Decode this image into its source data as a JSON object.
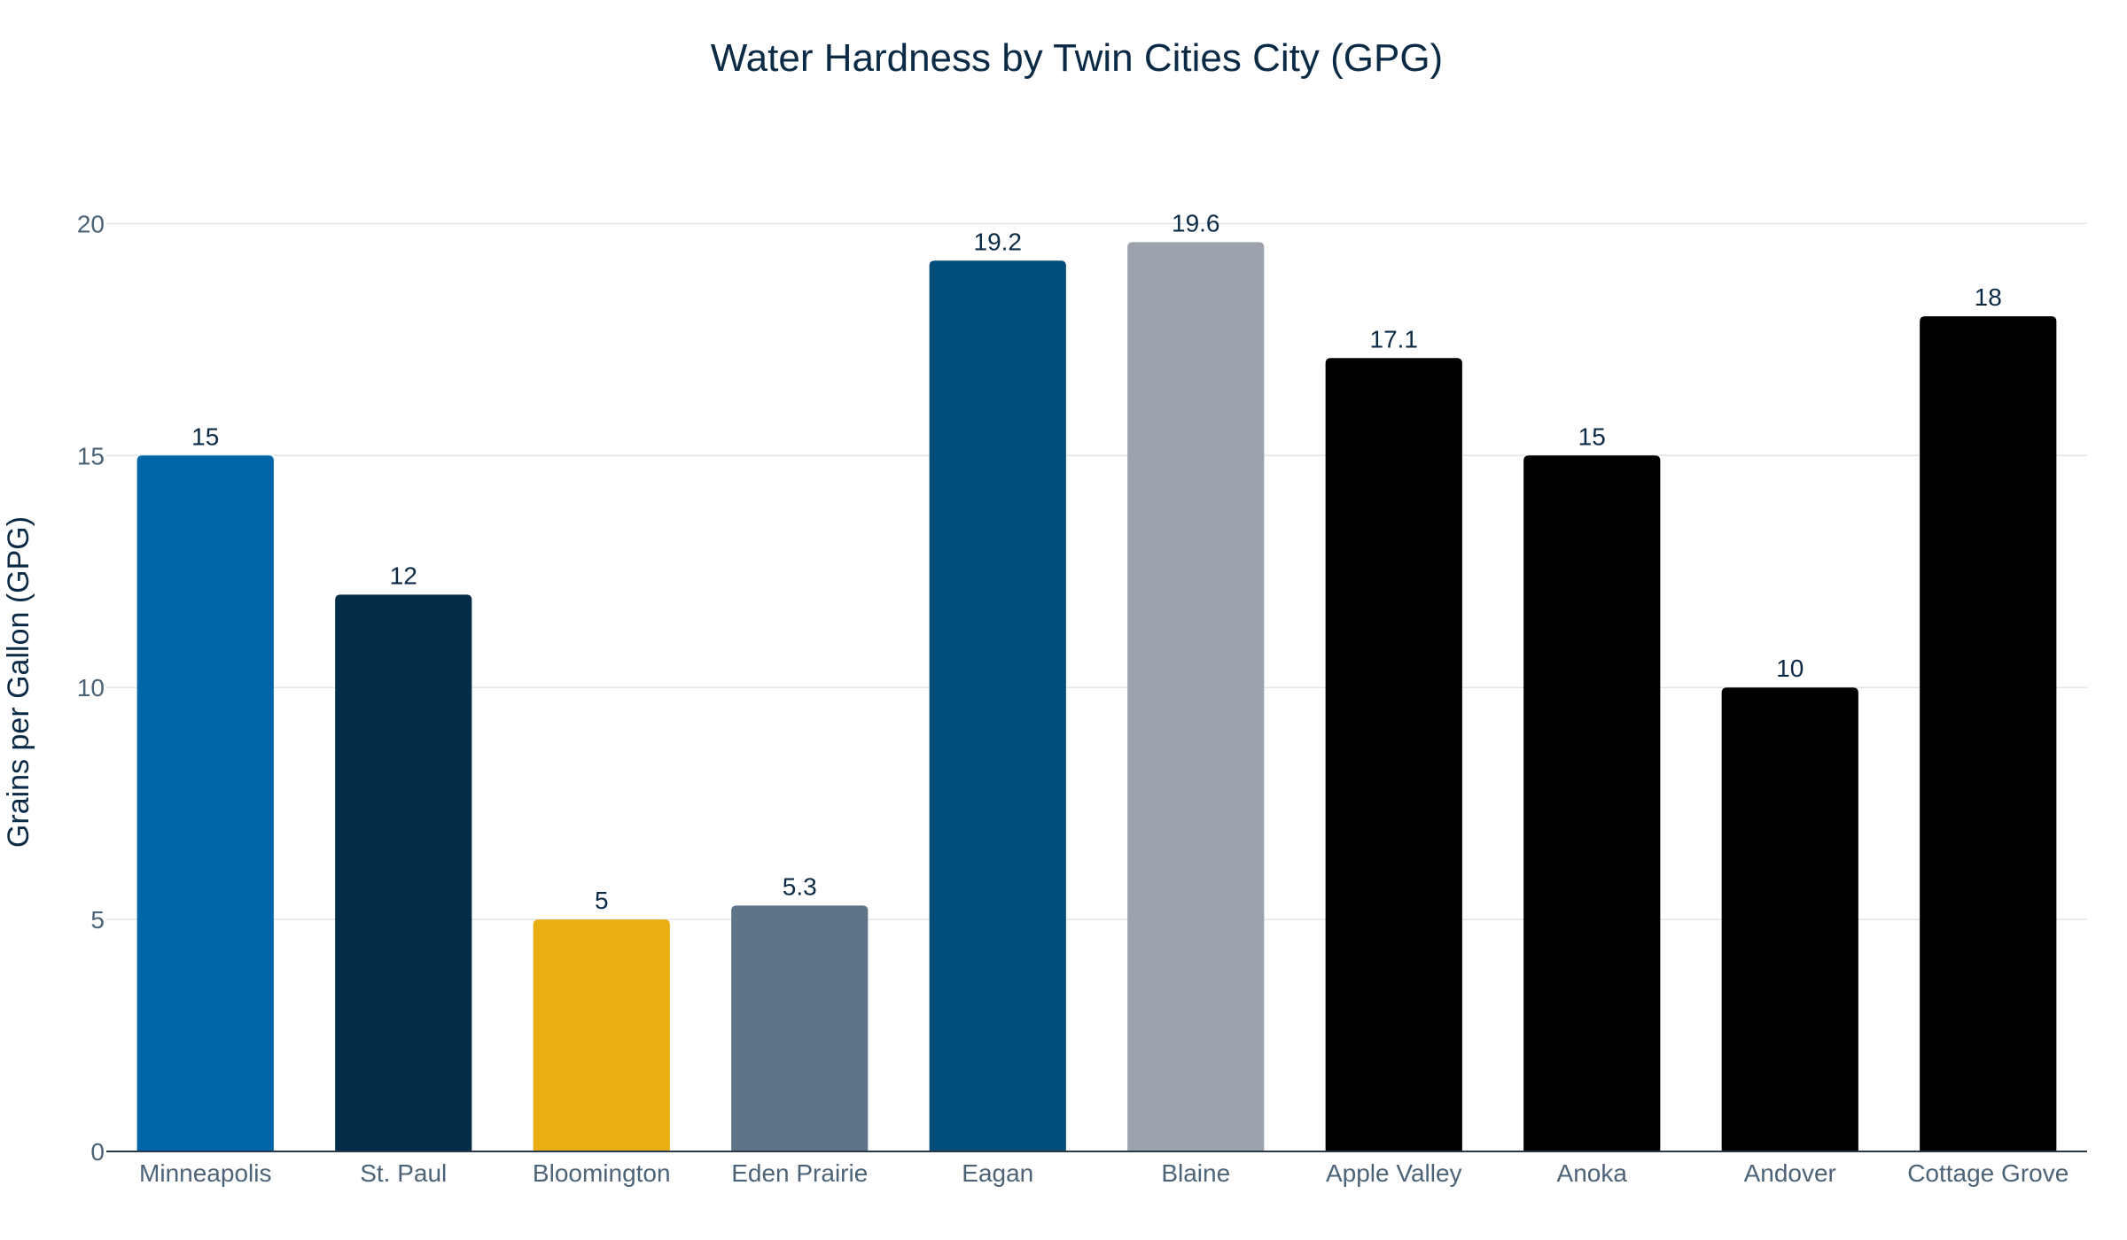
{
  "chart_data": {
    "type": "bar",
    "title": "Water Hardness by Twin Cities City (GPG)",
    "xlabel": "",
    "ylabel": "Grains per Gallon (GPG)",
    "ylim": [
      0,
      21
    ],
    "yticks": [
      "0",
      "5",
      "10",
      "15",
      "20"
    ],
    "grid": true,
    "categories": [
      "Minneapolis",
      "St. Paul",
      "Bloomington",
      "Eden Prairie",
      "Eagan",
      "Blaine",
      "Apple Valley",
      "Anoka",
      "Andover",
      "Cottage Grove"
    ],
    "values": [
      15,
      12,
      5,
      5.3,
      19.2,
      19.6,
      17.1,
      15,
      10,
      18
    ],
    "data_labels": [
      "15",
      "12",
      "5",
      "5.3",
      "19.2",
      "19.6",
      "17.1",
      "15",
      "10",
      "18"
    ],
    "colors": [
      "#0066a8",
      "#022c47",
      "#e8ae12",
      "#5e7488",
      "#004d7a",
      "#9ca3ad",
      "#000000",
      "#000000",
      "#000000",
      "#000000"
    ]
  }
}
